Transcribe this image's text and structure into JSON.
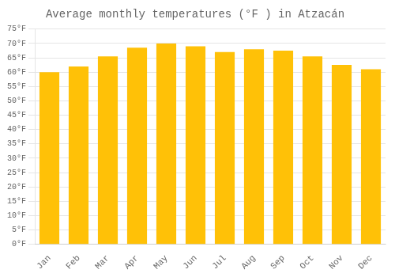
{
  "chart_data": {
    "type": "bar",
    "title": "Average monthly temperatures (°F ) in Atzacán",
    "categories": [
      "Jan",
      "Feb",
      "Mar",
      "Apr",
      "May",
      "Jun",
      "Jul",
      "Aug",
      "Sep",
      "Oct",
      "Nov",
      "Dec"
    ],
    "values": [
      60.0,
      62.0,
      65.5,
      68.5,
      70.0,
      69.0,
      67.0,
      68.0,
      67.5,
      65.5,
      62.5,
      61.0
    ],
    "color": "#FFC107",
    "ylim": [
      0,
      75
    ],
    "yticks": [
      {
        "value": 0,
        "label": "0°F"
      },
      {
        "value": 5,
        "label": "5°F"
      },
      {
        "value": 10,
        "label": "10°F"
      },
      {
        "value": 15,
        "label": "15°F"
      },
      {
        "value": 20,
        "label": "20°F"
      },
      {
        "value": 25,
        "label": "25°F"
      },
      {
        "value": 30,
        "label": "30°F"
      },
      {
        "value": 35,
        "label": "35°F"
      },
      {
        "value": 40,
        "label": "40°F"
      },
      {
        "value": 45,
        "label": "45°F"
      },
      {
        "value": 50,
        "label": "50°F"
      },
      {
        "value": 55,
        "label": "55°F"
      },
      {
        "value": 60,
        "label": "60°F"
      },
      {
        "value": 65,
        "label": "65°F"
      },
      {
        "value": 70,
        "label": "70°F"
      },
      {
        "value": 75,
        "label": "75°F"
      }
    ],
    "grid": true
  }
}
